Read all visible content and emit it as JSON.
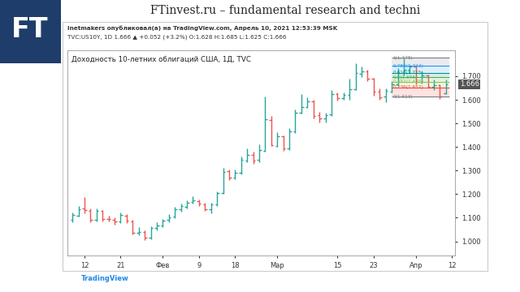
{
  "page": {
    "logo": "FT",
    "header": "FTinvest.ru – fundamental research and techni",
    "publisher": "Inetmakers опубликовал(а) на TradingView.com, Апрель 10, 2021 12:53:39 MSK",
    "symbol_line": "TVC:US10Y, 1D 1.666 ▲ +0.052 (+3.2%) O:1.628 H:1.685 L:1.625 C:1.666",
    "footer": "TradingView"
  },
  "chart_data": {
    "type": "ohlc",
    "title": "Доходность 10-летних облигаций США, 1Д, TVC",
    "categories": [
      null,
      null,
      "12",
      null,
      null,
      null,
      null,
      null,
      "21",
      null,
      null,
      null,
      null,
      null,
      null,
      "Фев",
      null,
      null,
      null,
      null,
      null,
      "9",
      null,
      null,
      null,
      null,
      null,
      "18",
      null,
      null,
      null,
      null,
      null,
      null,
      "Мар",
      null,
      null,
      null,
      null,
      null,
      null,
      null,
      null,
      null,
      "15",
      null,
      null,
      null,
      null,
      null,
      "23",
      null,
      null,
      null,
      null,
      null,
      null,
      "Апр",
      null,
      null,
      null,
      null,
      null,
      "12"
    ],
    "open": [
      1.09,
      1.11,
      1.14,
      1.13,
      1.092,
      1.128,
      1.094,
      1.09,
      1.085,
      1.11,
      1.085,
      1.035,
      1.04,
      1.015,
      1.058,
      1.068,
      1.09,
      1.104,
      1.135,
      1.146,
      1.166,
      1.172,
      1.158,
      1.136,
      1.158,
      1.206,
      1.296,
      1.27,
      1.292,
      1.342,
      1.365,
      1.345,
      1.385,
      1.515,
      1.405,
      1.446,
      1.394,
      1.466,
      1.545,
      1.57,
      1.593,
      1.533,
      1.521,
      1.537,
      1.624,
      1.608,
      1.621,
      1.645,
      1.71,
      1.721,
      1.69,
      1.634,
      1.613,
      1.636,
      1.665,
      1.713,
      1.728,
      1.74,
      1.675,
      1.702,
      1.656,
      1.662,
      1.628,
      null
    ],
    "high": [
      1.121,
      1.15,
      1.187,
      1.14,
      1.138,
      1.132,
      1.11,
      1.1,
      1.122,
      1.115,
      1.092,
      1.06,
      1.048,
      1.065,
      1.082,
      1.096,
      1.115,
      1.145,
      1.16,
      1.175,
      1.192,
      1.178,
      1.165,
      1.165,
      1.211,
      1.31,
      1.306,
      1.305,
      1.36,
      1.395,
      1.38,
      1.41,
      1.614,
      1.53,
      1.462,
      1.45,
      1.48,
      1.56,
      1.625,
      1.612,
      1.6,
      1.55,
      1.545,
      1.642,
      1.63,
      1.63,
      1.69,
      1.754,
      1.741,
      1.728,
      1.693,
      1.647,
      1.647,
      1.68,
      1.733,
      1.776,
      1.749,
      1.743,
      1.72,
      1.706,
      1.686,
      1.665,
      1.685,
      null
    ],
    "low": [
      1.08,
      1.104,
      1.12,
      1.082,
      1.083,
      1.086,
      1.085,
      1.07,
      1.077,
      1.078,
      1.03,
      1.025,
      1.005,
      1.01,
      1.045,
      1.06,
      1.082,
      1.098,
      1.125,
      1.138,
      1.16,
      1.15,
      1.128,
      1.12,
      1.15,
      1.202,
      1.26,
      1.262,
      1.285,
      1.336,
      1.33,
      1.335,
      1.381,
      1.404,
      1.4,
      1.385,
      1.388,
      1.46,
      1.54,
      1.565,
      1.52,
      1.505,
      1.505,
      1.53,
      1.595,
      1.599,
      1.6,
      1.64,
      1.695,
      1.68,
      1.616,
      1.599,
      1.59,
      1.63,
      1.66,
      1.702,
      1.711,
      1.665,
      1.67,
      1.65,
      1.642,
      1.604,
      1.625,
      null
    ],
    "close": [
      1.112,
      1.136,
      1.132,
      1.09,
      1.129,
      1.095,
      1.093,
      1.083,
      1.112,
      1.088,
      1.036,
      1.04,
      1.014,
      1.056,
      1.066,
      1.088,
      1.103,
      1.136,
      1.148,
      1.165,
      1.173,
      1.159,
      1.137,
      1.156,
      1.204,
      1.295,
      1.271,
      1.29,
      1.344,
      1.366,
      1.343,
      1.387,
      1.517,
      1.406,
      1.447,
      1.393,
      1.467,
      1.546,
      1.569,
      1.594,
      1.532,
      1.522,
      1.535,
      1.625,
      1.607,
      1.622,
      1.643,
      1.712,
      1.722,
      1.689,
      1.635,
      1.612,
      1.637,
      1.664,
      1.714,
      1.727,
      1.741,
      1.676,
      1.703,
      1.655,
      1.663,
      1.614,
      1.666,
      null
    ],
    "colors": [
      "#26a69a",
      "#26a69a",
      "#ef5350",
      "#ef5350",
      "#26a69a",
      "#ef5350",
      "#ef5350",
      "#ef5350",
      "#26a69a",
      "#ef5350",
      "#ef5350",
      "#26a69a",
      "#ef5350",
      "#26a69a",
      "#26a69a",
      "#26a69a",
      "#26a69a",
      "#26a69a",
      "#26a69a",
      "#26a69a",
      "#26a69a",
      "#ef5350",
      "#ef5350",
      "#26a69a",
      "#26a69a",
      "#26a69a",
      "#ef5350",
      "#26a69a",
      "#26a69a",
      "#26a69a",
      "#ef5350",
      "#26a69a",
      "#26a69a",
      "#ef5350",
      "#26a69a",
      "#ef5350",
      "#26a69a",
      "#26a69a",
      "#26a69a",
      "#26a69a",
      "#ef5350",
      "#ef5350",
      "#26a69a",
      "#26a69a",
      "#ef5350",
      "#26a69a",
      "#26a69a",
      "#26a69a",
      "#26a69a",
      "#ef5350",
      "#ef5350",
      "#ef5350",
      "#26a69a",
      "#26a69a",
      "#26a69a",
      "#26a69a",
      "#26a69a",
      "#ef5350",
      "#26a69a",
      "#ef5350",
      "#26a69a",
      "#ef5350",
      "#26a69a",
      null
    ],
    "ylim": [
      0.94,
      1.81
    ],
    "yticks": [
      {
        "value": 1.0,
        "label": "1.000"
      },
      {
        "value": 1.1,
        "label": "1.100"
      },
      {
        "value": 1.2,
        "label": "1.200"
      },
      {
        "value": 1.3,
        "label": "1.300"
      },
      {
        "value": 1.4,
        "label": "1.400"
      },
      {
        "value": 1.5,
        "label": "1.500"
      },
      {
        "value": 1.6,
        "label": "1.600"
      },
      {
        "value": 1.7,
        "label": "1.700"
      }
    ],
    "last_value": 1.666,
    "fib_levels": [
      {
        "value": 1.778,
        "label": "1(1.778)",
        "color": "#787b86"
      },
      {
        "value": 1.743,
        "label": "0.786(1.743)",
        "color": "#2196f3"
      },
      {
        "value": 1.715,
        "label": "0.618(1.715)",
        "color": "#009688"
      },
      {
        "value": 1.696,
        "label": "0.5(1.696)",
        "color": "#4caf50"
      },
      {
        "value": 1.676,
        "label": "0.382(1.676)",
        "color": "#8bc34a"
      },
      {
        "value": 1.652,
        "label": "0.236(1.652)",
        "color": "#f44336"
      },
      {
        "value": 1.613,
        "label": "0(1.613)",
        "color": "#787b86"
      }
    ],
    "grid": false
  }
}
